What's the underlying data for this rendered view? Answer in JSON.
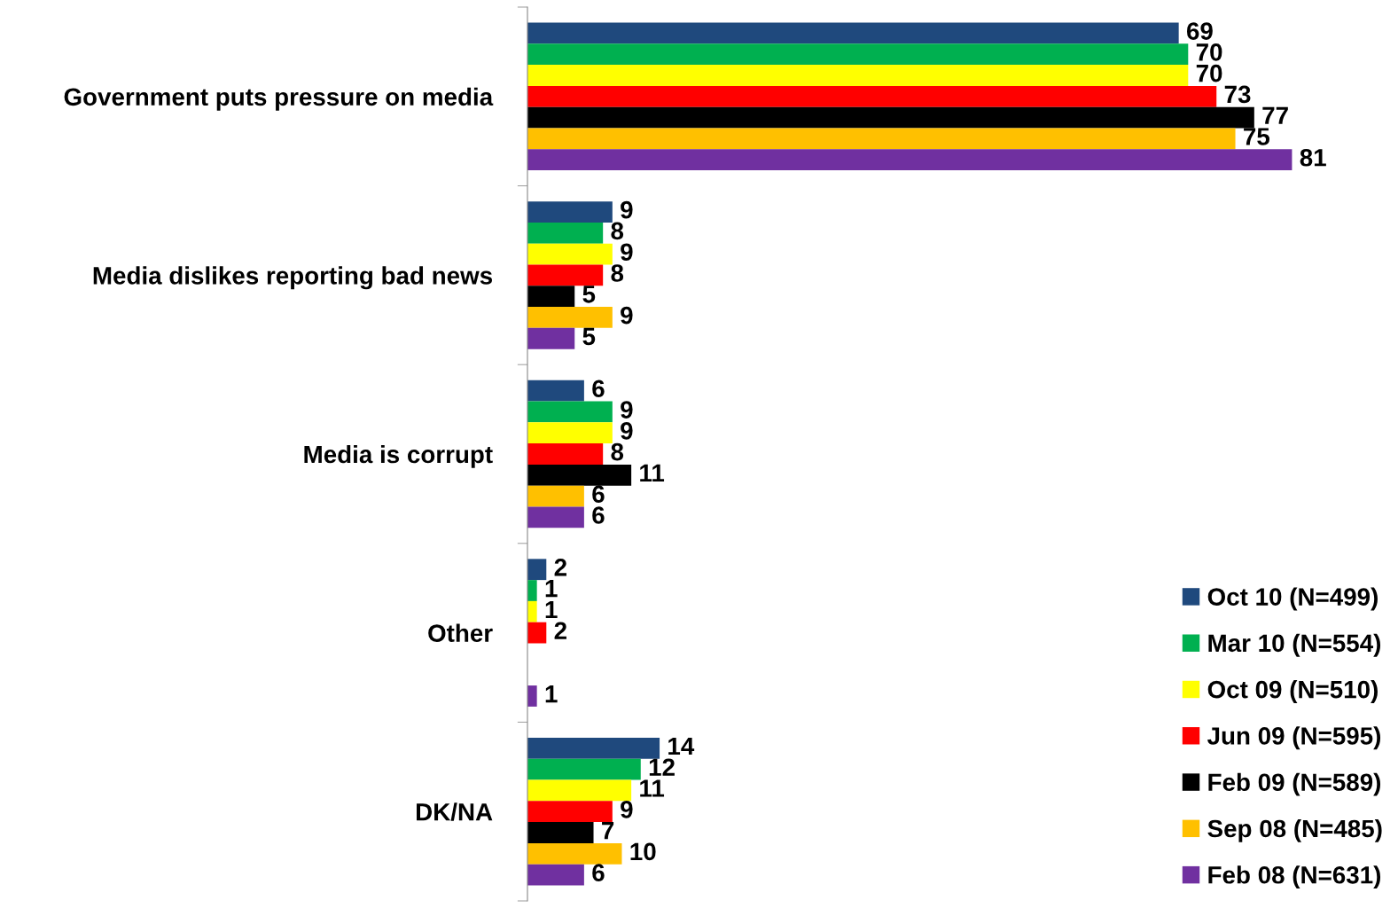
{
  "chart_data": {
    "type": "bar",
    "orientation": "horizontal",
    "data_labels": true,
    "legend": "bottom right",
    "grid": false,
    "categories": [
      "Government puts pressure on media",
      "Media dislikes reporting bad news",
      "Media is corrupt",
      "Other",
      "DK/NA"
    ],
    "series": [
      {
        "name": "Oct 10 (N=499)",
        "color": "#1f497d",
        "values": [
          69,
          9,
          6,
          2,
          14
        ]
      },
      {
        "name": "Mar 10 (N=554)",
        "color": "#00b050",
        "values": [
          70,
          8,
          9,
          1,
          12
        ]
      },
      {
        "name": "Oct 09 (N=510)",
        "color": "#ffff00",
        "values": [
          70,
          9,
          9,
          1,
          11
        ]
      },
      {
        "name": "Jun 09 (N=595)",
        "color": "#ff0000",
        "values": [
          73,
          8,
          8,
          2,
          9
        ]
      },
      {
        "name": "Feb 09 (N=589)",
        "color": "#000000",
        "values": [
          77,
          5,
          11,
          null,
          7
        ]
      },
      {
        "name": "Sep 08 (N=485)",
        "color": "#ffc000",
        "values": [
          75,
          9,
          6,
          null,
          10
        ]
      },
      {
        "name": "Feb 08 (N=631)",
        "color": "#7030a0",
        "values": [
          81,
          5,
          6,
          1,
          6
        ]
      }
    ]
  }
}
